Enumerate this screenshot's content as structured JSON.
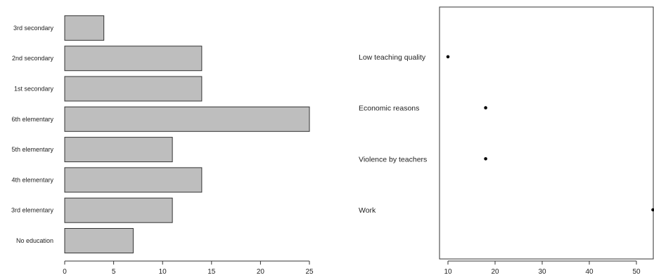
{
  "chart_data": [
    {
      "type": "bar",
      "orientation": "horizontal",
      "categories": [
        "No education",
        "3rd elementary",
        "4th elementary",
        "5th elementary",
        "6th elementary",
        "1st secondary",
        "2nd secondary",
        "3rd secondary"
      ],
      "values": [
        7,
        11,
        14,
        11,
        25,
        14,
        14,
        4
      ],
      "title": "",
      "xlabel": "",
      "ylabel": "",
      "xlim": [
        0,
        25
      ],
      "xticks": [
        0,
        5,
        10,
        15,
        20,
        25
      ],
      "grid": false,
      "colors": {
        "bar_fill": "#bebebe",
        "bar_stroke": "#333333"
      }
    },
    {
      "type": "scatter",
      "style": "dot-chart",
      "categories": [
        "Work",
        "Violence by teachers",
        "Economic reasons",
        "Low teaching quality"
      ],
      "values": [
        54,
        18,
        18,
        10
      ],
      "title": "",
      "xlabel": "",
      "ylabel": "",
      "xlim": [
        9,
        55
      ],
      "xticks": [
        10,
        20,
        30,
        40,
        50
      ],
      "grid": false,
      "colors": {
        "point": "#000000"
      }
    }
  ]
}
